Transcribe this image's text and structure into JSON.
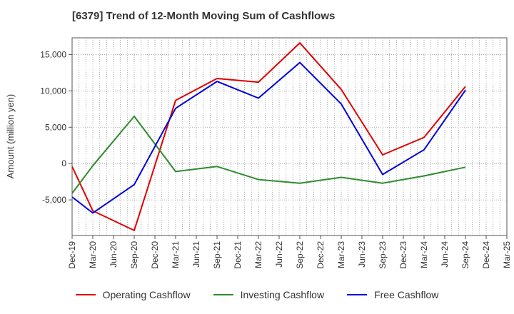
{
  "chart_data": {
    "type": "line",
    "title": "[6379]  Trend of 12-Month Moving Sum of Cashflows",
    "xlabel": "",
    "ylabel": "Amount (million yen)",
    "categories": [
      "Dec-19",
      "Mar-20",
      "Jun-20",
      "Sep-20",
      "Dec-20",
      "Mar-21",
      "Jun-21",
      "Sep-21",
      "Dec-21",
      "Mar-22",
      "Jun-22",
      "Sep-22",
      "Dec-22",
      "Mar-23",
      "Jun-23",
      "Sep-23",
      "Dec-23",
      "Mar-24",
      "Jun-24",
      "Sep-24",
      "Dec-24",
      "Mar-25"
    ],
    "y_ticks": [
      15000,
      10000,
      5000,
      0,
      -5000
    ],
    "y_tick_labels": [
      "15,000",
      "10,000",
      "5,000",
      "0",
      "-5,000"
    ],
    "ylim": [
      -9900,
      17300
    ],
    "grid": true,
    "legend_position": "bottom",
    "series": [
      {
        "name": "Operating Cashflow",
        "color": "#e00000",
        "values": [
          -400,
          -6500,
          null,
          -9200,
          null,
          8700,
          null,
          11700,
          null,
          11200,
          null,
          16600,
          null,
          10200,
          null,
          1200,
          null,
          3600,
          null,
          10600,
          null,
          null
        ]
      },
      {
        "name": "Investing Cashflow",
        "color": "#2e8b2e",
        "values": [
          -4100,
          -300,
          null,
          6500,
          null,
          -1100,
          null,
          -400,
          null,
          -2200,
          null,
          -2700,
          null,
          -1900,
          null,
          -2700,
          null,
          -1700,
          null,
          -500,
          null,
          null
        ]
      },
      {
        "name": "Free Cashflow",
        "color": "#0000dd",
        "values": [
          -4600,
          -6800,
          null,
          -2900,
          null,
          7600,
          null,
          11300,
          null,
          9000,
          null,
          13900,
          null,
          8200,
          null,
          -1500,
          null,
          1900,
          null,
          10100,
          null,
          null
        ]
      }
    ]
  }
}
